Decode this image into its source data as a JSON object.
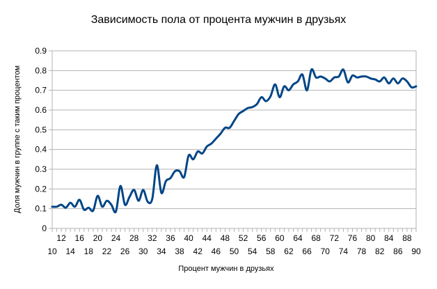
{
  "chart_data": {
    "type": "line",
    "title": "Зависимость пола от процента мужчин в друзьях",
    "xlabel": "Процент мужчин в друзьях",
    "ylabel": "Доля мужчин в группе с таким процентом",
    "xlim": [
      10,
      90
    ],
    "ylim": [
      0,
      0.9
    ],
    "yticks": [
      "0",
      "0.1",
      "0.2",
      "0.3",
      "0.4",
      "0.5",
      "0.6",
      "0.7",
      "0.8",
      "0.9"
    ],
    "xticks": [
      "10",
      "12",
      "14",
      "16",
      "18",
      "20",
      "22",
      "24",
      "26",
      "28",
      "30",
      "32",
      "34",
      "36",
      "38",
      "40",
      "42",
      "44",
      "46",
      "48",
      "50",
      "52",
      "54",
      "56",
      "58",
      "60",
      "62",
      "64",
      "66",
      "68",
      "70",
      "72",
      "74",
      "76",
      "78",
      "80",
      "82",
      "84",
      "86",
      "88",
      "90"
    ],
    "grid": true,
    "legend": "none",
    "line_color": "#004586",
    "smoothed": true,
    "x": [
      10,
      11,
      12,
      13,
      14,
      15,
      16,
      17,
      18,
      19,
      20,
      21,
      22,
      23,
      24,
      25,
      26,
      27,
      28,
      29,
      30,
      31,
      32,
      33,
      34,
      35,
      36,
      37,
      38,
      39,
      40,
      41,
      42,
      43,
      44,
      45,
      46,
      47,
      48,
      49,
      50,
      51,
      52,
      53,
      54,
      55,
      56,
      57,
      58,
      59,
      60,
      61,
      62,
      63,
      64,
      65,
      66,
      67,
      68,
      69,
      70,
      71,
      72,
      73,
      74,
      75,
      76,
      77,
      78,
      79,
      80,
      81,
      82,
      83,
      84,
      85,
      86,
      87,
      88,
      89,
      90
    ],
    "values": [
      0.11,
      0.11,
      0.12,
      0.105,
      0.13,
      0.11,
      0.145,
      0.095,
      0.105,
      0.09,
      0.165,
      0.11,
      0.14,
      0.12,
      0.085,
      0.215,
      0.12,
      0.16,
      0.195,
      0.14,
      0.195,
      0.135,
      0.15,
      0.32,
      0.18,
      0.24,
      0.255,
      0.29,
      0.29,
      0.26,
      0.37,
      0.35,
      0.39,
      0.38,
      0.415,
      0.43,
      0.455,
      0.48,
      0.51,
      0.51,
      0.545,
      0.58,
      0.595,
      0.61,
      0.615,
      0.63,
      0.665,
      0.645,
      0.67,
      0.73,
      0.665,
      0.72,
      0.7,
      0.73,
      0.745,
      0.78,
      0.7,
      0.805,
      0.765,
      0.77,
      0.76,
      0.745,
      0.765,
      0.77,
      0.805,
      0.74,
      0.775,
      0.765,
      0.77,
      0.77,
      0.76,
      0.755,
      0.745,
      0.765,
      0.735,
      0.76,
      0.735,
      0.76,
      0.745,
      0.715,
      0.72
    ]
  }
}
